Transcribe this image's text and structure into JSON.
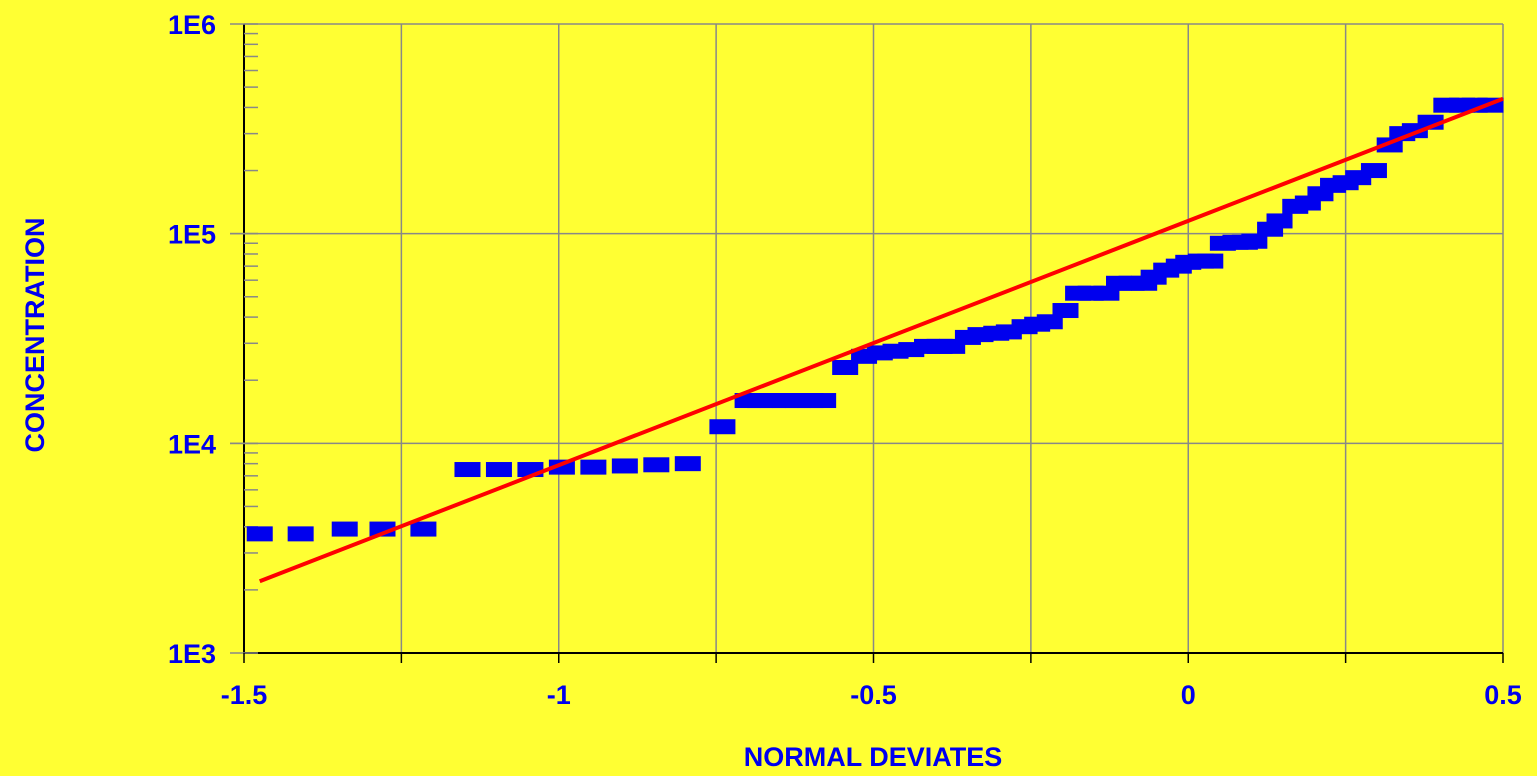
{
  "chart_data": {
    "type": "scatter",
    "title": "",
    "xlabel": "NORMAL DEVIATES",
    "ylabel": "CONCENTRATION",
    "xlim": [
      -1.5,
      0.5
    ],
    "ylim": [
      1000,
      1000000
    ],
    "yscale": "log",
    "grid": true,
    "legend": "none",
    "x_ticks": [
      {
        "value": -1.5,
        "label": "-1.5"
      },
      {
        "value": -1.0,
        "label": "-1"
      },
      {
        "value": -0.5,
        "label": "-0.5"
      },
      {
        "value": 0.0,
        "label": "0"
      },
      {
        "value": 0.5,
        "label": "0.5"
      }
    ],
    "y_ticks": [
      {
        "value": 1000,
        "label": "1E3"
      },
      {
        "value": 10000,
        "label": "1E4"
      },
      {
        "value": 100000,
        "label": "1E5"
      },
      {
        "value": 1000000,
        "label": "1E6"
      }
    ],
    "series": [
      {
        "kind": "markers",
        "marker": "rectangle",
        "color": "#0000EE",
        "points": [
          [
            -1.475,
            3700
          ],
          [
            -1.41,
            3700
          ],
          [
            -1.34,
            3900
          ],
          [
            -1.28,
            3900
          ],
          [
            -1.215,
            3900
          ],
          [
            -1.145,
            7500
          ],
          [
            -1.095,
            7500
          ],
          [
            -1.045,
            7500
          ],
          [
            -0.995,
            7700
          ],
          [
            -0.945,
            7700
          ],
          [
            -0.895,
            7800
          ],
          [
            -0.845,
            7900
          ],
          [
            -0.795,
            8000
          ],
          [
            -0.74,
            12000
          ],
          [
            -0.7,
            16000
          ],
          [
            -0.68,
            16000
          ],
          [
            -0.66,
            16000
          ],
          [
            -0.64,
            16000
          ],
          [
            -0.62,
            16000
          ],
          [
            -0.6,
            16000
          ],
          [
            -0.58,
            16000
          ],
          [
            -0.545,
            23000
          ],
          [
            -0.515,
            26000
          ],
          [
            -0.49,
            27000
          ],
          [
            -0.465,
            27500
          ],
          [
            -0.44,
            28000
          ],
          [
            -0.415,
            29000
          ],
          [
            -0.395,
            29000
          ],
          [
            -0.375,
            29000
          ],
          [
            -0.35,
            32000
          ],
          [
            -0.33,
            33000
          ],
          [
            -0.305,
            33500
          ],
          [
            -0.285,
            34000
          ],
          [
            -0.26,
            36000
          ],
          [
            -0.24,
            37000
          ],
          [
            -0.22,
            38000
          ],
          [
            -0.195,
            43000
          ],
          [
            -0.175,
            52000
          ],
          [
            -0.155,
            52000
          ],
          [
            -0.13,
            52000
          ],
          [
            -0.11,
            58000
          ],
          [
            -0.09,
            58000
          ],
          [
            -0.07,
            58000
          ],
          [
            -0.055,
            62000
          ],
          [
            -0.035,
            67000
          ],
          [
            -0.015,
            70000
          ],
          [
            0.0,
            73000
          ],
          [
            0.02,
            74000
          ],
          [
            0.035,
            74000
          ],
          [
            0.055,
            90000
          ],
          [
            0.075,
            91000
          ],
          [
            0.09,
            91000
          ],
          [
            0.105,
            92000
          ],
          [
            0.13,
            105000
          ],
          [
            0.145,
            115000
          ],
          [
            0.17,
            135000
          ],
          [
            0.19,
            140000
          ],
          [
            0.21,
            155000
          ],
          [
            0.23,
            170000
          ],
          [
            0.25,
            175000
          ],
          [
            0.27,
            185000
          ],
          [
            0.295,
            200000
          ],
          [
            0.32,
            265000
          ],
          [
            0.34,
            300000
          ],
          [
            0.36,
            310000
          ],
          [
            0.385,
            340000
          ],
          [
            0.41,
            410000
          ],
          [
            0.435,
            410000
          ],
          [
            0.455,
            410000
          ],
          [
            0.48,
            410000
          ]
        ]
      },
      {
        "kind": "line",
        "color": "#FF0000",
        "points": [
          [
            -1.475,
            2200
          ],
          [
            0.5,
            440000
          ]
        ]
      }
    ],
    "colors": {
      "background": "#FFFF33",
      "text": "#0000EE",
      "markers": "#0000EE",
      "fit_line": "#FF0000",
      "grid": "#888888",
      "axis": "#000000"
    }
  }
}
